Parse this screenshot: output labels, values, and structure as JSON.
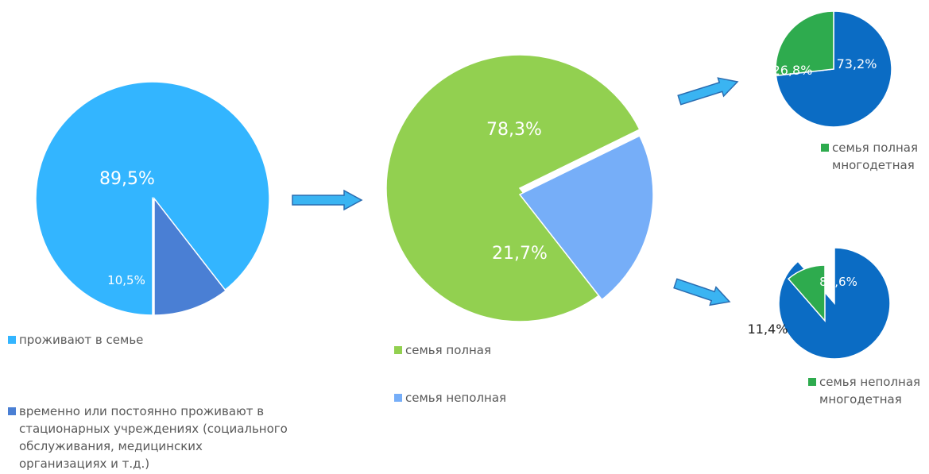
{
  "colors": {
    "light_blue": "#33b5ff",
    "steel_blue": "#4a7fd4",
    "lime_green": "#92d050",
    "pale_blue": "#76aef8",
    "green": "#2eab4e",
    "dark_blue": "#0b6cc4",
    "arrow_fill": "#3ab4f2",
    "arrow_stroke": "#2a6cb0"
  },
  "legends": {
    "pie1_item1": "проживают в семье",
    "pie1_item2": "временно или постоянно проживают в\nстационарных учреждениях (социального\nобслуживания, медицинских\nорганизациях и т.д.)",
    "pie2_item1": "семья полная",
    "pie2_item2": "семья неполная",
    "pie3_item1": "семья полная\nмногодетная",
    "pie4_item1": "семья неполная\nмногодетная"
  },
  "chart_data": [
    {
      "type": "pie",
      "slices": [
        {
          "label": "проживают в семье",
          "value": 89.5,
          "display": "89,5%",
          "color": "#33b5ff"
        },
        {
          "label": "временно или постоянно проживают в стационарных учреждениях (социального обслуживания, медицинских организациях и т.д.)",
          "value": 10.5,
          "display": "10,5%",
          "color": "#4a7fd4"
        }
      ]
    },
    {
      "type": "pie",
      "slices": [
        {
          "label": "семья полная",
          "value": 78.3,
          "display": "78,3%",
          "color": "#92d050"
        },
        {
          "label": "семья неполная",
          "value": 21.7,
          "display": "21,7%",
          "color": "#76aef8"
        }
      ]
    },
    {
      "type": "pie",
      "slices": [
        {
          "label": "семья полная многодетная",
          "value": 26.8,
          "display": "26,8%",
          "color": "#2eab4e"
        },
        {
          "label": "",
          "value": 73.2,
          "display": "73,2%",
          "color": "#0b6cc4"
        }
      ]
    },
    {
      "type": "pie",
      "slices": [
        {
          "label": "семья неполная многодетная",
          "value": 11.4,
          "display": "11,4%",
          "color": "#2eab4e"
        },
        {
          "label": "",
          "value": 88.6,
          "display": "88,6%",
          "color": "#0b6cc4"
        }
      ]
    }
  ]
}
